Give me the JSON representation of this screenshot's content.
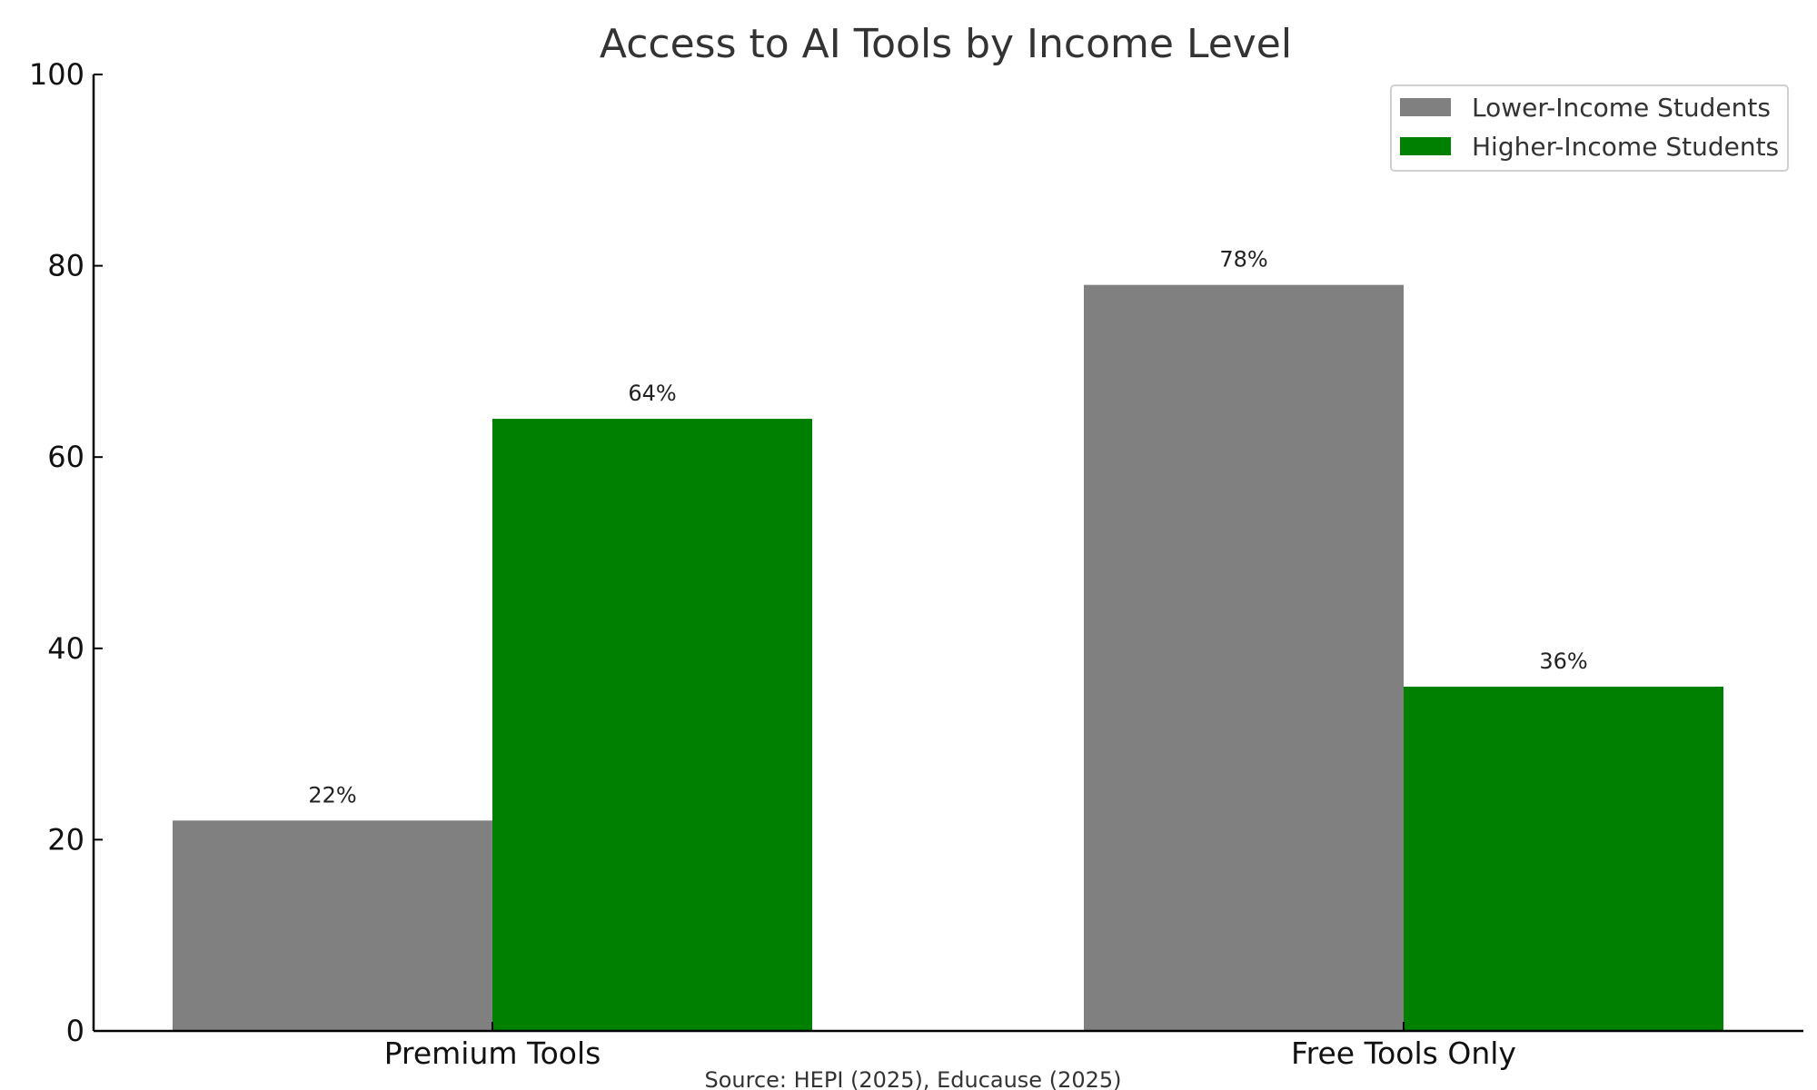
{
  "chart_data": {
    "type": "bar",
    "title": "Access to AI Tools by Income Level",
    "categories": [
      "Premium Tools",
      "Free Tools Only"
    ],
    "series": [
      {
        "name": "Lower-Income Students",
        "values": [
          22,
          78
        ],
        "labels": [
          "22%",
          "78%"
        ],
        "color": "#808080"
      },
      {
        "name": "Higher-Income Students",
        "values": [
          64,
          36
        ],
        "labels": [
          "64%",
          "36%"
        ],
        "color": "#008000"
      }
    ],
    "y_ticks": [
      "0",
      "20",
      "40",
      "60",
      "80",
      "100"
    ],
    "ylim": [
      0,
      100
    ],
    "grid": false,
    "legend_position": "top-right",
    "source": "Source: HEPI (2025), Educause (2025)"
  }
}
